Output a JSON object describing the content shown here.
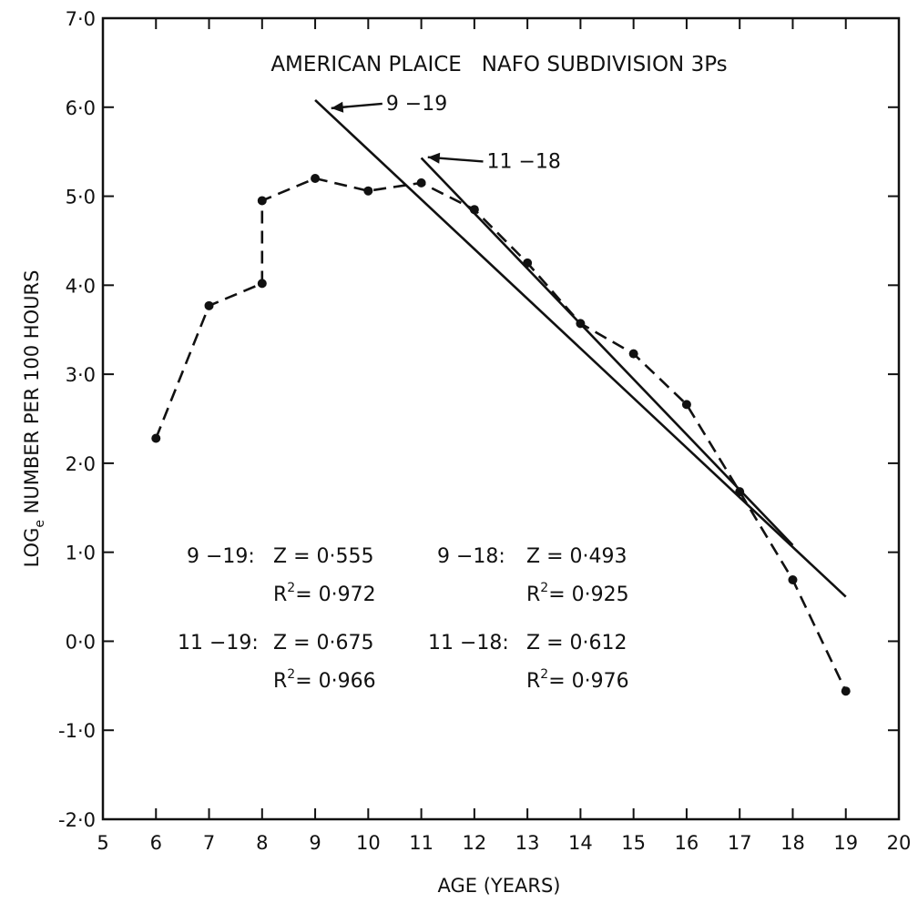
{
  "chart_data": {
    "type": "line",
    "title": "AMERICAN PLAICE   NAFO SUBDIVISION 3Ps",
    "xlabel": "AGE (YEARS)",
    "ylabel_main": "NUMBER PER 100 HOURS",
    "ylabel_prefix": "LOG",
    "ylabel_subscript": "e",
    "xlim": [
      5,
      20
    ],
    "ylim": [
      -2.0,
      7.0
    ],
    "xticks": [
      "5",
      "6",
      "7",
      "8",
      "9",
      "10",
      "11",
      "12",
      "13",
      "14",
      "15",
      "16",
      "17",
      "18",
      "19",
      "20"
    ],
    "yticks": [
      "-2·0",
      "-1·0",
      "0·0",
      "1·0",
      "2·0",
      "3·0",
      "4·0",
      "5·0",
      "6·0",
      "7·0"
    ],
    "series": [
      {
        "style": "dashed-with-markers",
        "x": [
          6,
          7,
          8,
          8,
          9,
          10,
          11,
          12,
          13,
          14,
          15,
          16,
          17,
          18,
          19
        ],
        "y": [
          2.28,
          3.77,
          4.02,
          4.95,
          5.2,
          5.06,
          5.15,
          4.85,
          4.25,
          3.57,
          3.23,
          2.66,
          1.68,
          0.69,
          -0.56
        ],
        "markers_x": [
          6,
          7,
          8,
          8,
          9,
          10,
          11,
          12,
          13,
          14,
          15,
          16,
          17,
          18,
          19
        ],
        "markers_y": [
          2.28,
          3.77,
          4.02,
          4.95,
          5.2,
          5.06,
          5.15,
          4.85,
          4.25,
          3.57,
          3.23,
          2.66,
          1.68,
          0.69,
          -0.56
        ]
      },
      {
        "name": "9-19",
        "style": "solid",
        "x": [
          9,
          19
        ],
        "y": [
          6.08,
          0.5
        ]
      },
      {
        "name": "11-18",
        "style": "solid",
        "x": [
          11,
          18
        ],
        "y": [
          5.43,
          1.08
        ]
      }
    ],
    "line_labels": [
      {
        "text": "9 −19",
        "x": 10.3,
        "y": 6.05
      },
      {
        "text": "11 −18",
        "x": 12.2,
        "y": 5.4
      }
    ],
    "stats": [
      {
        "range": "9 −19:",
        "z": "Z = 0·555",
        "r2_prefix": "R",
        "r2_sup": "2",
        "r2_value": "= 0·972"
      },
      {
        "range": "9 −18:",
        "z": "Z = 0·493",
        "r2_prefix": "R",
        "r2_sup": "2",
        "r2_value": "= 0·925"
      },
      {
        "range": "11 −19:",
        "z": "Z = 0·675",
        "r2_prefix": "R",
        "r2_sup": "2",
        "r2_value": "= 0·966"
      },
      {
        "range": "11 −18:",
        "z": "Z = 0·612",
        "r2_prefix": "R",
        "r2_sup": "2",
        "r2_value": "= 0·976"
      }
    ],
    "grid": false,
    "colors": {
      "ink": "#111111",
      "background": "#ffffff"
    }
  }
}
